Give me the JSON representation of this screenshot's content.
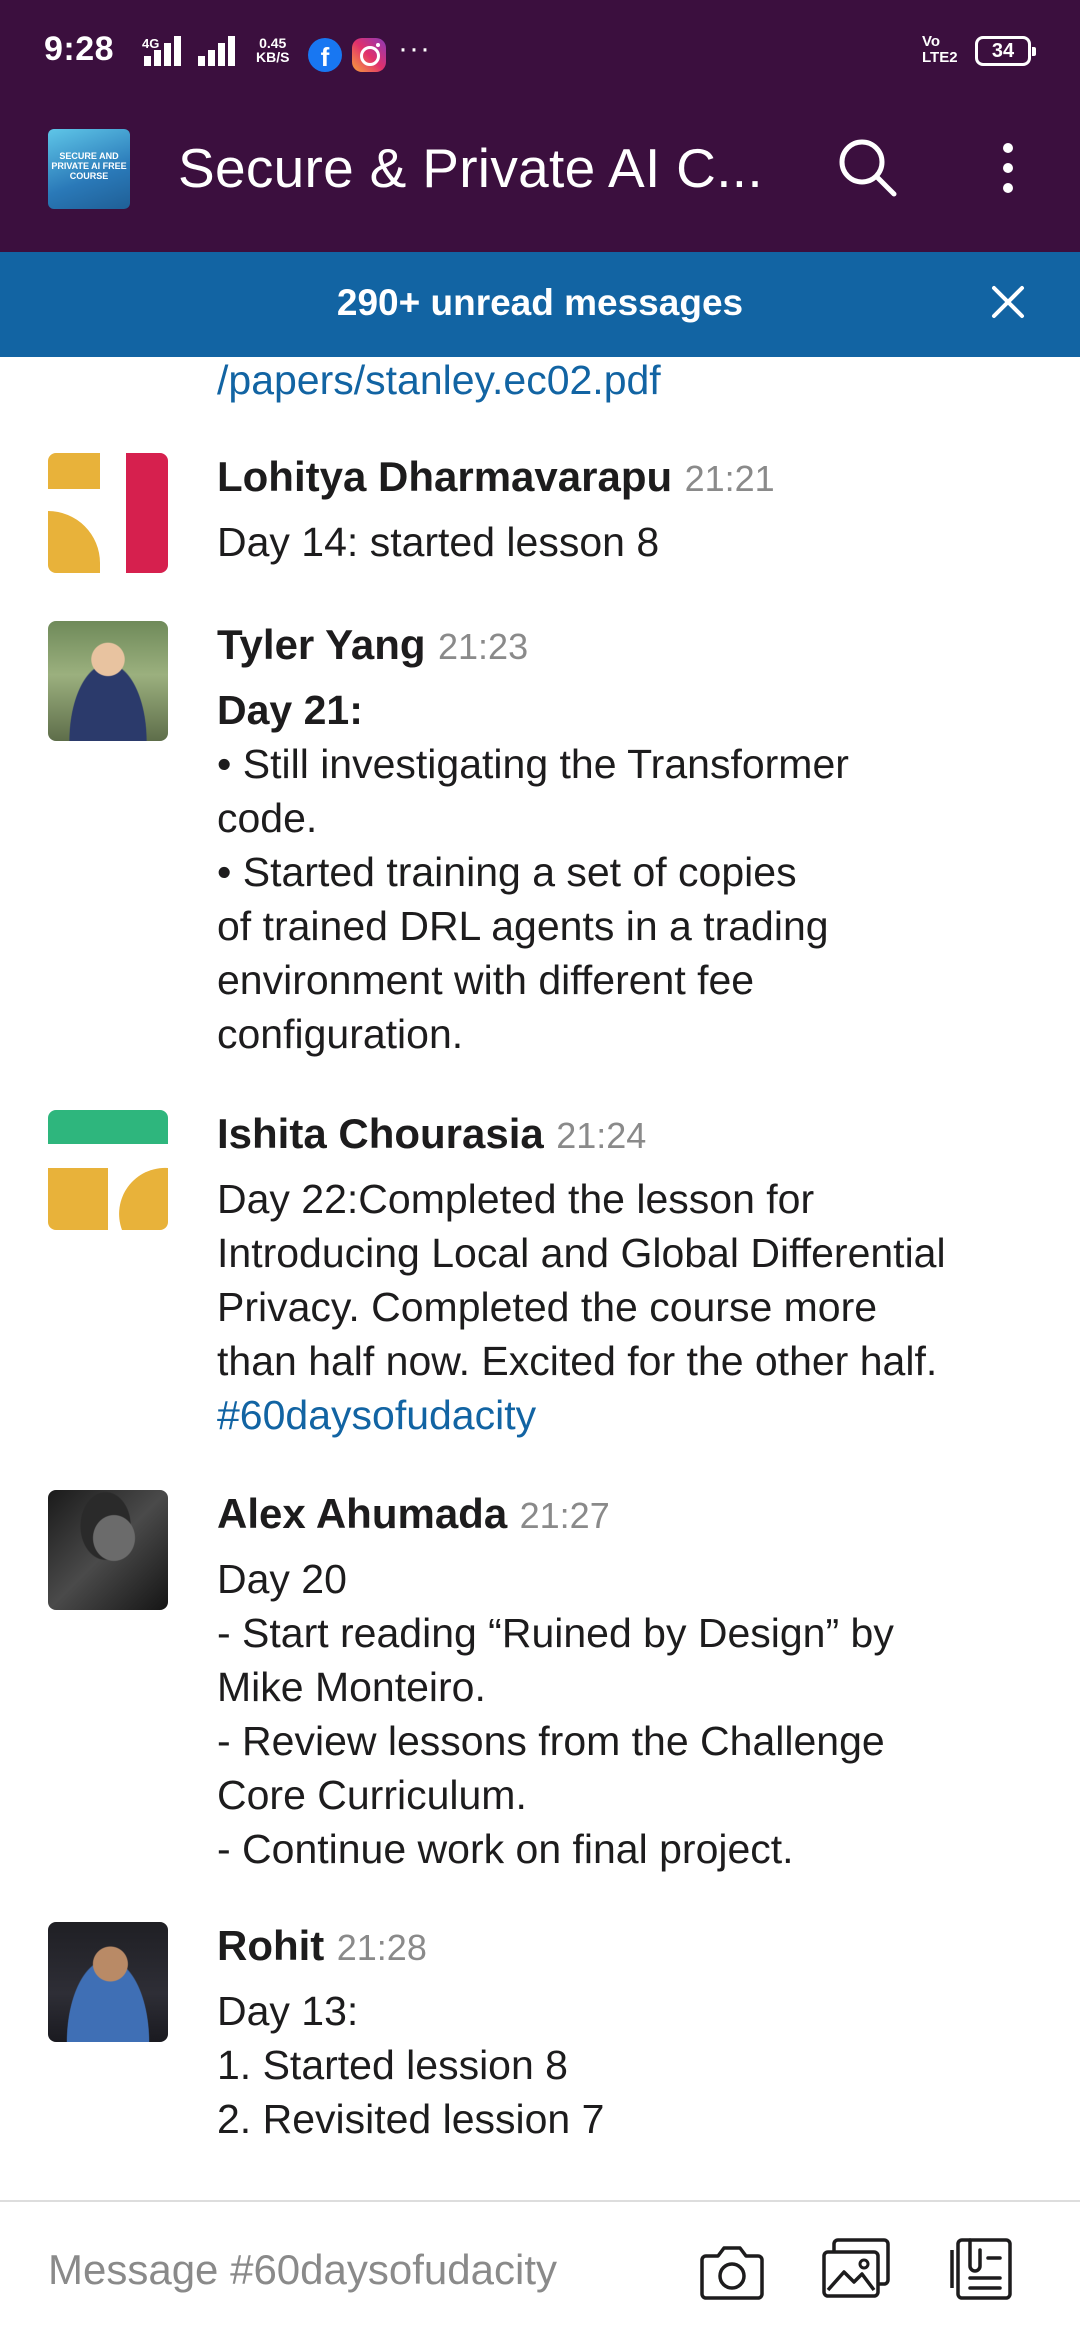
{
  "status_bar": {
    "time": "9:28",
    "network": "4G",
    "speed_value": "0.45",
    "speed_unit": "KB/S",
    "more_indicator": "···",
    "volte_top": "Vo",
    "volte_bottom": "LTE2",
    "battery": "34"
  },
  "header": {
    "channel_title": "Secure & Private AI C...",
    "logo_text": "SECURE AND PRIVATE AI FREE COURSE",
    "icons": [
      "search-icon",
      "more-vertical-icon"
    ]
  },
  "unread_banner": {
    "text": "290+ unread messages",
    "icon": "close-icon"
  },
  "messages": {
    "link_fragment": "/papers/stanley.ec02.pdf",
    "items": [
      {
        "author": "Lohitya Dharmavarapu",
        "time": "21:21",
        "lines": [
          "Day 14: started lesson 8"
        ]
      },
      {
        "author": "Tyler Yang",
        "time": "21:23",
        "lines": [
          "Day 21:",
          "• Still investigating the Transformer",
          "code.",
          "• Started training a set of copies",
          "of trained DRL agents in a trading",
          "environment with different fee",
          "configuration."
        ]
      },
      {
        "author": "Ishita Chourasia",
        "time": "21:24",
        "lines": [
          "Day 22:Completed the lesson for",
          "Introducing Local and Global Differential",
          "Privacy. Completed the course more",
          "than half now. Excited for the other half."
        ],
        "hashtag": "#60daysofudacity"
      },
      {
        "author": "Alex Ahumada",
        "time": "21:27",
        "lines": [
          "Day 20",
          "- Start reading “Ruined by Design” by",
          "Mike Monteiro.",
          "- Review lessons from the Challenge",
          "Core Curriculum.",
          "- Continue work on final project."
        ]
      },
      {
        "author": "Rohit",
        "time": "21:28",
        "lines": [
          "Day 13:",
          "1. Started lession 8",
          "2. Revisited lession 7"
        ]
      }
    ]
  },
  "composer": {
    "placeholder": "Message #60daysofudacity",
    "icons": [
      "camera-icon",
      "gallery-icon",
      "files-icon"
    ]
  },
  "colors": {
    "header_bg": "#3b0f3e",
    "banner_bg": "#1264a3",
    "link": "#1264a3",
    "timestamp": "#8a8a8a",
    "avatar_yellow": "#e8b23a",
    "avatar_red": "#d6204e",
    "avatar_green": "#2eb67d"
  }
}
